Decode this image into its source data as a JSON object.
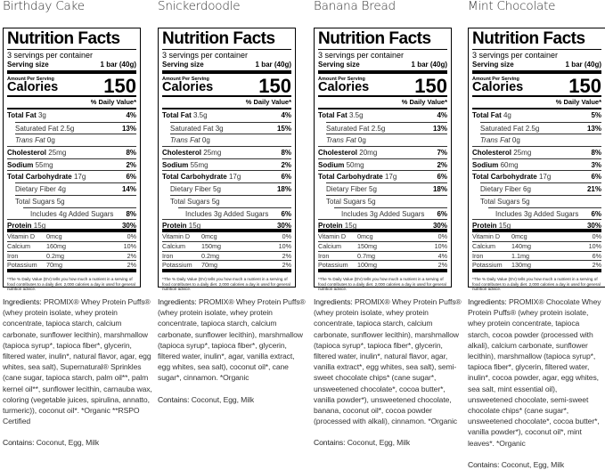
{
  "labels": {
    "nutrition_facts": "Nutrition Facts",
    "servings_per_container": "3 servings per container",
    "serving_size_label": "Serving size",
    "serving_size_value": "1 bar (40g)",
    "amount_per_serving": "Amount Per Serving",
    "calories_label": "Calories",
    "daily_value_header": "% Daily Value*",
    "total_fat": "Total Fat",
    "saturated_fat": "Saturated Fat",
    "trans_fat": "Trans Fat",
    "cholesterol": "Cholesterol",
    "sodium": "Sodium",
    "total_carbohydrate": "Total Carbohydrate",
    "dietary_fiber": "Dietary Fiber",
    "total_sugars": "Total Sugars",
    "includes": "Includes",
    "added_sugars": "Added Sugars",
    "protein": "Protein",
    "vitamin_d": "Vitamin D",
    "calcium": "Calcium",
    "iron": "Iron",
    "potassium": "Potassium",
    "footnote": "*The % Daily Value (DV) tells you how much a nutrient in a serving of food contributes to a daily diet. 2,000 calories a day is used for general nutrition advice.",
    "ingredients_label": "Ingredients:",
    "contains_label": "Contains:"
  },
  "panels": [
    {
      "flavor": "Birthday Cake",
      "calories": "150",
      "total_fat": "3g",
      "total_fat_dv": "4%",
      "sat_fat": "2.5g",
      "sat_fat_dv": "13%",
      "trans_fat": "0g",
      "cholesterol": "25mg",
      "cholesterol_dv": "8%",
      "sodium": "55mg",
      "sodium_dv": "2%",
      "carb": "17g",
      "carb_dv": "6%",
      "fiber": "4g",
      "fiber_dv": "14%",
      "sugars": "5g",
      "added_sugars": "4g",
      "added_sugars_dv": "8%",
      "protein": "15g",
      "protein_dv": "30%",
      "vitamin_d": "0mcg",
      "vitamin_d_dv": "0%",
      "calcium": "160mg",
      "calcium_dv": "10%",
      "iron": "0.2mg",
      "iron_dv": "2%",
      "potassium": "70mg",
      "potassium_dv": "2%",
      "ingredients": "PROMIX® Whey Protein Puffs® (whey protein isolate, whey protein concentrate, tapioca starch, calcium carbonate, sunflower lecithin), marshmallow (tapioca syrup*, tapioca fiber*, glycerin, filtered water, inulin*, natural flavor, agar, egg whites, sea salt), Supernatural® Sprinkles (cane sugar, tapioca starch, palm oil**, palm kernel oil**, sunflower lecithin, carnauba wax, coloring (vegetable juices, spirulina, annatto, turmeric)), coconut oil*. *Organic **RSPO Certified",
      "contains": "Coconut, Egg, Milk"
    },
    {
      "flavor": "Snickerdoodle",
      "calories": "150",
      "total_fat": "3.5g",
      "total_fat_dv": "4%",
      "sat_fat": "3g",
      "sat_fat_dv": "15%",
      "trans_fat": "0g",
      "cholesterol": "25mg",
      "cholesterol_dv": "8%",
      "sodium": "55mg",
      "sodium_dv": "2%",
      "carb": "17g",
      "carb_dv": "6%",
      "fiber": "5g",
      "fiber_dv": "18%",
      "sugars": "5g",
      "added_sugars": "3g",
      "added_sugars_dv": "6%",
      "protein": "15g",
      "protein_dv": "30%",
      "vitamin_d": "0mcg",
      "vitamin_d_dv": "0%",
      "calcium": "150mg",
      "calcium_dv": "10%",
      "iron": "0.2mg",
      "iron_dv": "2%",
      "potassium": "70mg",
      "potassium_dv": "2%",
      "ingredients": "PROMIX® Whey Protein Puffs® (whey protein isolate, whey protein concentrate, tapioca starch, calcium carbonate, sunflower lecithin), marshmallow (tapioca syrup*, tapioca fiber*, glycerin, filtered water, inulin*, agar, vanilla extract, egg whites, sea salt), coconut oil*, cane sugar*, cinnamon. *Organic",
      "contains": "Coconut, Egg, Milk"
    },
    {
      "flavor": "Banana Bread",
      "calories": "150",
      "total_fat": "3.5g",
      "total_fat_dv": "4%",
      "sat_fat": "2.5g",
      "sat_fat_dv": "13%",
      "trans_fat": "0g",
      "cholesterol": "20mg",
      "cholesterol_dv": "7%",
      "sodium": "50mg",
      "sodium_dv": "2%",
      "carb": "17g",
      "carb_dv": "6%",
      "fiber": "5g",
      "fiber_dv": "18%",
      "sugars": "5g",
      "added_sugars": "3g",
      "added_sugars_dv": "6%",
      "protein": "15g",
      "protein_dv": "30%",
      "vitamin_d": "0mcg",
      "vitamin_d_dv": "0%",
      "calcium": "150mg",
      "calcium_dv": "10%",
      "iron": "0.7mg",
      "iron_dv": "4%",
      "potassium": "100mg",
      "potassium_dv": "2%",
      "ingredients": "PROMIX® Whey Protein Puffs® (whey protein isolate, whey protein concentrate, tapioca starch, calcium carbonate, sunflower lecithin), marshmallow (tapioca syrup*, tapioca fiber*, glycerin, filtered water, inulin*, natural flavor, agar, vanilla extract*, egg whites, sea salt), semi-sweet chocolate chips* (cane sugar*, unsweetened chocolate*, cocoa butter*, vanilla powder*), unsweetened chocolate, banana, coconut oil*, cocoa powder (processed with alkali), cinnamon. *Organic",
      "contains": "Coconut, Egg, Milk"
    },
    {
      "flavor": "Mint Chocolate",
      "calories": "150",
      "total_fat": "4g",
      "total_fat_dv": "5%",
      "sat_fat": "2.5g",
      "sat_fat_dv": "13%",
      "trans_fat": "0g",
      "cholesterol": "25mg",
      "cholesterol_dv": "8%",
      "sodium": "60mg",
      "sodium_dv": "3%",
      "carb": "17g",
      "carb_dv": "6%",
      "fiber": "6g",
      "fiber_dv": "21%",
      "sugars": "5g",
      "added_sugars": "3g",
      "added_sugars_dv": "6%",
      "protein": "15g",
      "protein_dv": "30%",
      "vitamin_d": "0mcg",
      "vitamin_d_dv": "0%",
      "calcium": "140mg",
      "calcium_dv": "10%",
      "iron": "1.1mg",
      "iron_dv": "6%",
      "potassium": "130mg",
      "potassium_dv": "2%",
      "ingredients": "PROMIX® Chocolate Whey Protein Puffs® (whey protein isolate, whey protein concentrate, tapioca starch, cocoa powder (processed with alkali), calcium carbonate, sunflower lecithin), marshmallow (tapioca syrup*, tapioca fiber*, glycerin, filtered water, inulin*, cocoa powder, agar, egg whites, sea salt, mint essential oil), unsweetened chocolate, semi-sweet chocolate chips* (cane sugar*, unsweetened chocolate*, cocoa butter*, vanilla powder*), coconut oil*, mint leaves*. *Organic",
      "contains": "Coconut, Egg, Milk"
    }
  ]
}
